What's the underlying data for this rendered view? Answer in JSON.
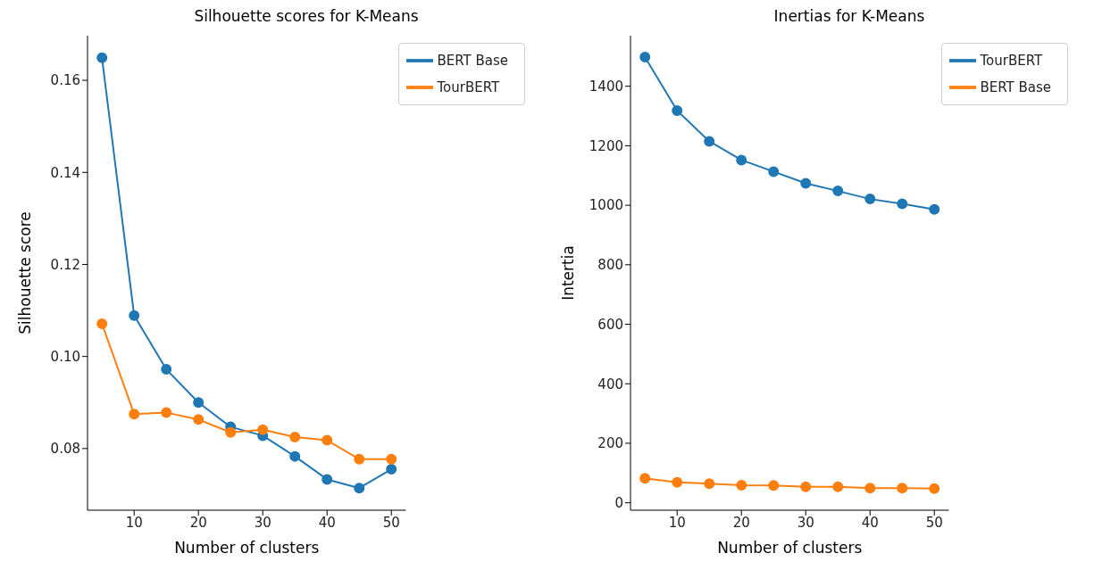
{
  "chart_data": [
    {
      "type": "line",
      "title": "Silhouette scores for K-Means",
      "xlabel": "Number of clusters",
      "ylabel": "Silhouette score",
      "x": [
        5,
        10,
        15,
        20,
        25,
        30,
        35,
        40,
        45,
        50
      ],
      "series": [
        {
          "name": "BERT Base",
          "color": "#1f77b4",
          "values": [
            0.1649,
            0.1089,
            0.0972,
            0.09,
            0.0847,
            0.0828,
            0.0783,
            0.0733,
            0.0714,
            0.0755
          ]
        },
        {
          "name": "TourBERT",
          "color": "#ff7f0e",
          "values": [
            0.1071,
            0.0875,
            0.0878,
            0.0863,
            0.0835,
            0.0841,
            0.0825,
            0.0818,
            0.0777,
            0.0777
          ]
        }
      ],
      "xlim": [
        2.75,
        52.25
      ],
      "xticks": [
        10,
        20,
        30,
        40,
        50
      ],
      "ylim": [
        0.0666,
        0.1697
      ],
      "yticks": [
        {
          "value": 0.08,
          "label": "0.08"
        },
        {
          "value": 0.1,
          "label": "0.10"
        },
        {
          "value": 0.12,
          "label": "0.12"
        },
        {
          "value": 0.14,
          "label": "0.14"
        },
        {
          "value": 0.16,
          "label": "0.16"
        }
      ],
      "grid": false,
      "legend": "top right",
      "marker": "circle",
      "line_style": "solid"
    },
    {
      "type": "line",
      "title": "Inertias for K-Means",
      "xlabel": "Number of clusters",
      "ylabel": "Intertia",
      "x": [
        5,
        10,
        15,
        20,
        25,
        30,
        35,
        40,
        45,
        50
      ],
      "series": [
        {
          "name": "TourBERT",
          "color": "#1f77b4",
          "values": [
            1498,
            1318,
            1215,
            1152,
            1113,
            1074,
            1048,
            1021,
            1005,
            986
          ]
        },
        {
          "name": "BERT Base",
          "color": "#ff7f0e",
          "values": [
            82,
            69,
            64,
            59,
            58,
            54,
            54,
            49,
            49,
            48
          ]
        }
      ],
      "xlim": [
        2.75,
        52.25
      ],
      "xticks": [
        10,
        20,
        30,
        40,
        50
      ],
      "ylim": [
        -25,
        1570
      ],
      "yticks": [
        0,
        200,
        400,
        600,
        800,
        1000,
        1200,
        1400
      ],
      "grid": false,
      "legend": "top right",
      "marker": "circle",
      "line_style": "solid"
    }
  ]
}
